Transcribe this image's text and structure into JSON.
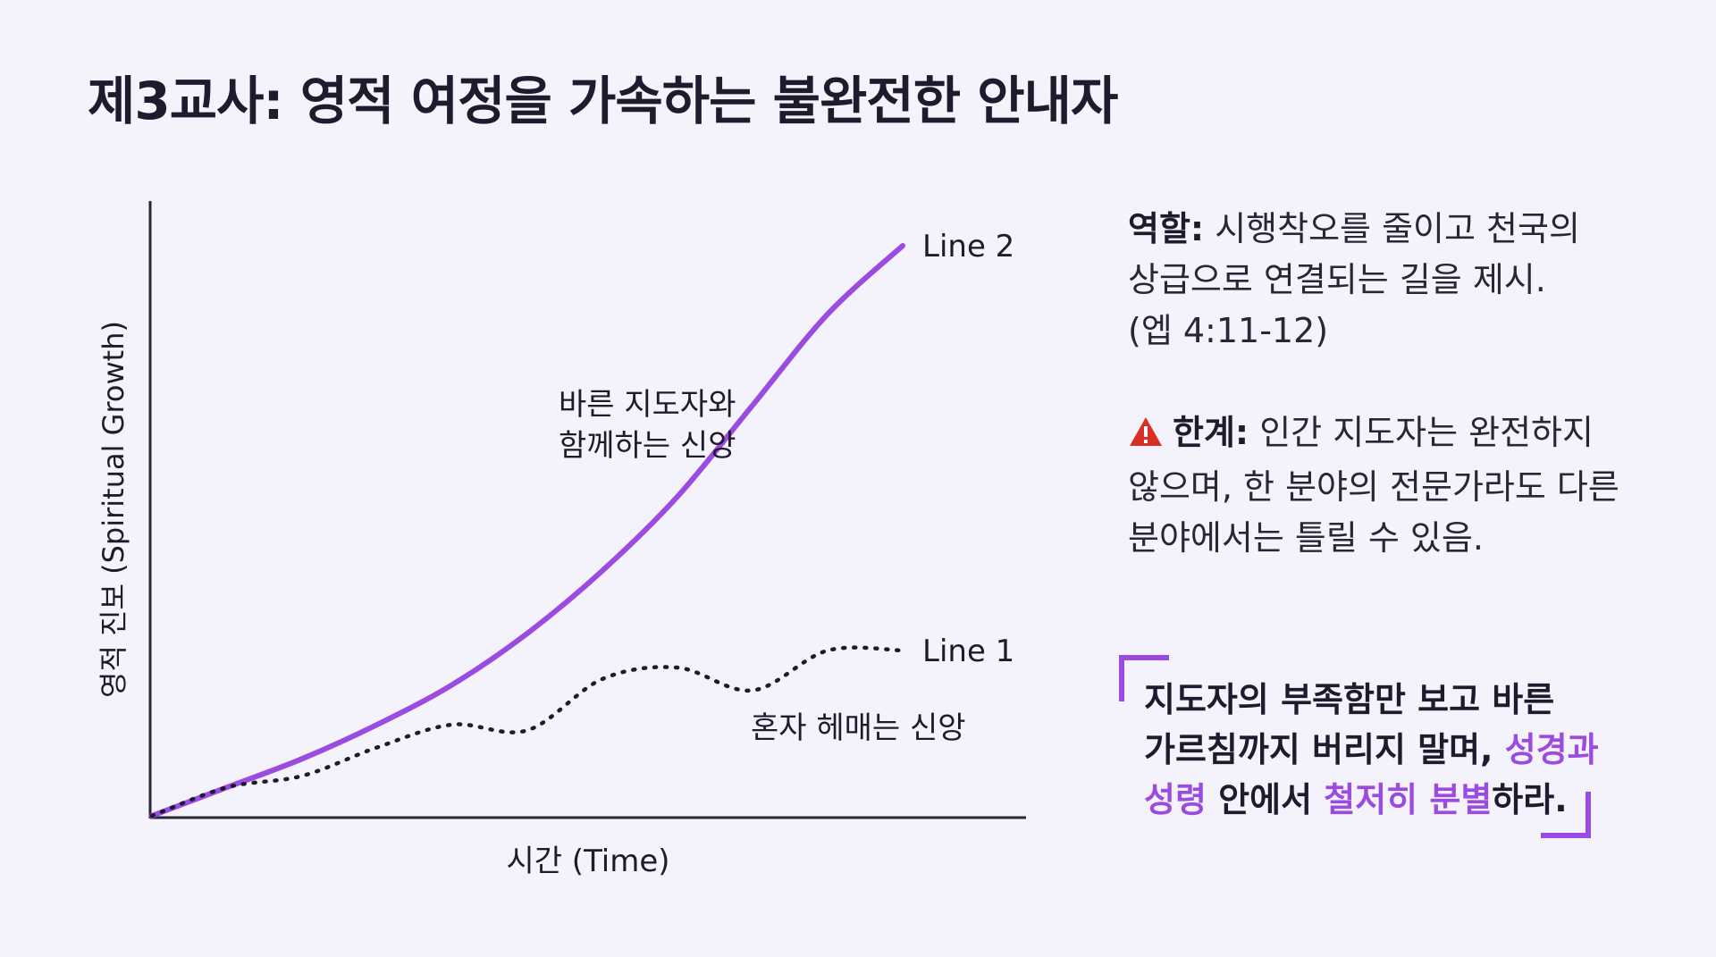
{
  "title": "제3교사: 영적 여정을 가속하는 불완전한 안내자",
  "chart_data": {
    "type": "line",
    "xlabel": "시간 (Time)",
    "ylabel": "영적 진보 (Spiritual Growth)",
    "x": [
      0,
      0.1,
      0.2,
      0.3,
      0.4,
      0.5,
      0.6,
      0.7,
      0.8,
      0.9,
      1.0
    ],
    "series": [
      {
        "name": "Line 2",
        "annotation": [
          "바른 지도자와",
          "함께하는 신앙"
        ],
        "color": "#9b4be0",
        "style": "solid",
        "values": [
          0,
          0.05,
          0.1,
          0.16,
          0.23,
          0.32,
          0.43,
          0.56,
          0.72,
          0.88,
          1.0
        ]
      },
      {
        "name": "Line 1",
        "annotation": [
          "혼자 헤매는 신앙"
        ],
        "color": "#1f1b2c",
        "style": "dotted",
        "values": [
          0,
          0.05,
          0.07,
          0.12,
          0.16,
          0.15,
          0.24,
          0.26,
          0.22,
          0.29,
          0.29
        ]
      }
    ]
  },
  "role": {
    "label": "역할:",
    "lines": [
      "시행착오를 줄이고 천국의",
      "상급으로 연결되는 길을 제시.",
      "(엡 4:11-12)"
    ]
  },
  "limit": {
    "icon": "warning-icon",
    "label": "한계:",
    "lines": [
      "인간 지도자는 완전하지",
      "않으며, 한 분야의 전문가라도 다른",
      "분야에서는 틀릴 수 있음."
    ]
  },
  "quote": {
    "accent_color": "#9b4be0",
    "line1": "지도자의 부족함만 보고 바른",
    "line2_a": "가르침까지 버리지 말며, ",
    "line2_hl": "성경과",
    "line3_hl1": "성령",
    "line3_b": " 안에서 ",
    "line3_hl2": "철저히 분별",
    "line3_c": "하라."
  }
}
